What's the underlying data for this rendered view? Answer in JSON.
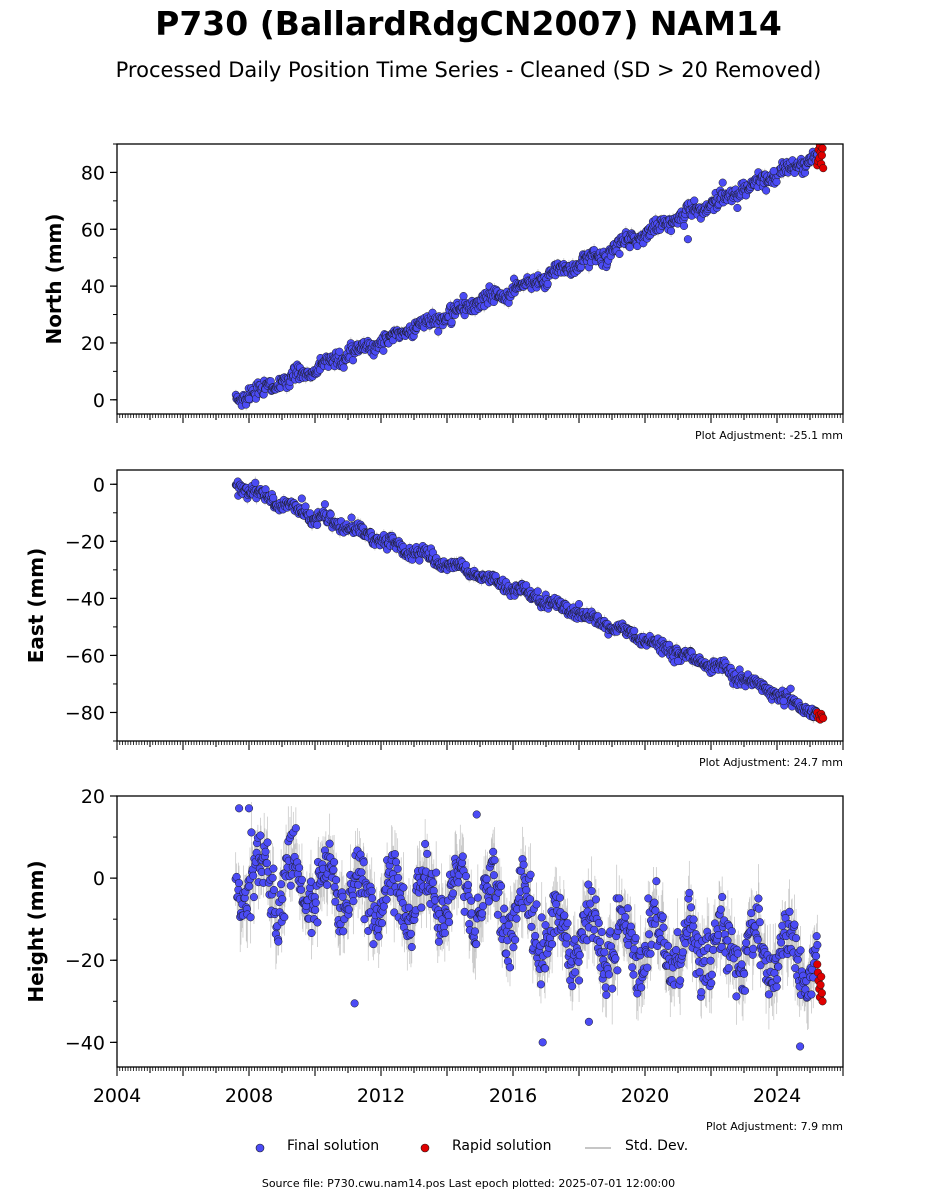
{
  "title": "P730 (BallardRdgCN2007) NAM14",
  "subtitle": "Processed Daily Position Time Series - Cleaned (SD > 20 Removed)",
  "footer": "Source file: P730.cwu.nam14.pos  Last epoch plotted: 2025-07-01 12:00:00",
  "colors": {
    "final": "#4b4bf5",
    "rapid": "#e00000",
    "stddev": "#b4b4b4",
    "edge": "#1a1a1a"
  },
  "legend": [
    {
      "key": "final",
      "label": "Final solution"
    },
    {
      "key": "rapid",
      "label": "Rapid solution"
    },
    {
      "key": "stddev",
      "label": "Std. Dev."
    }
  ],
  "chart_data": [
    {
      "type": "scatter",
      "name": "north",
      "ylabel": "North (mm)",
      "xlim": [
        2004.0,
        2026.0
      ],
      "ylim": [
        -5,
        90
      ],
      "yticks": [
        0,
        20,
        40,
        60,
        80
      ],
      "adjustment_label": "Plot Adjustment: -25.1 mm",
      "show_x_tick_labels": false,
      "series": [
        {
          "key": "final",
          "label": "Final solution",
          "trend": [
            [
              2007.6,
              0.5
            ],
            [
              2009.0,
              6
            ],
            [
              2011.0,
              16
            ],
            [
              2013.0,
              25
            ],
            [
              2015.0,
              34.5
            ],
            [
              2017.0,
              43
            ],
            [
              2019.0,
              53
            ],
            [
              2021.0,
              64
            ],
            [
              2023.0,
              74
            ],
            [
              2025.3,
              86
            ]
          ],
          "seasonal_amplitude": 1.2,
          "noise": 1.3,
          "sd": 1.5
        },
        {
          "key": "rapid",
          "label": "Rapid solution",
          "x": [
            2025.22,
            2025.24,
            2025.26,
            2025.28,
            2025.3,
            2025.32,
            2025.34,
            2025.36,
            2025.38,
            2025.4
          ],
          "y": [
            82.5,
            84,
            88,
            85,
            89.5,
            87,
            83,
            86,
            88.5,
            81.5
          ]
        }
      ],
      "outliers": [
        [
          2008.0,
          0.3
        ],
        [
          2014.5,
          36.5
        ],
        [
          2021.3,
          56.5
        ],
        [
          2023.9,
          80.5
        ],
        [
          2022.8,
          67.5
        ]
      ]
    },
    {
      "type": "scatter",
      "name": "east",
      "ylabel": "East (mm)",
      "xlim": [
        2004.0,
        2026.0
      ],
      "ylim": [
        -90,
        5
      ],
      "yticks": [
        0,
        -20,
        -40,
        -60,
        -80
      ],
      "adjustment_label": "Plot Adjustment: 24.7 mm",
      "show_x_tick_labels": false,
      "series": [
        {
          "key": "final",
          "label": "Final solution",
          "trend": [
            [
              2007.6,
              0
            ],
            [
              2009.0,
              -7
            ],
            [
              2011.0,
              -15
            ],
            [
              2013.0,
              -24
            ],
            [
              2015.0,
              -32
            ],
            [
              2017.0,
              -41
            ],
            [
              2019.0,
              -50
            ],
            [
              2021.0,
              -59
            ],
            [
              2023.0,
              -68
            ],
            [
              2025.3,
              -81
            ]
          ],
          "seasonal_amplitude": 1.0,
          "noise": 1.1,
          "sd": 1.5
        },
        {
          "key": "rapid",
          "label": "Rapid solution",
          "x": [
            2025.22,
            2025.25,
            2025.28,
            2025.31,
            2025.34,
            2025.37,
            2025.4
          ],
          "y": [
            -80,
            -82,
            -81,
            -82.5,
            -80.5,
            -81.5,
            -82
          ]
        }
      ],
      "outliers": [
        [
          2009.6,
          -5
        ],
        [
          2010.3,
          -7
        ],
        [
          2018.0,
          -42
        ],
        [
          2021.0,
          -62
        ],
        [
          2024.2,
          -76
        ]
      ]
    },
    {
      "type": "scatter",
      "name": "height",
      "ylabel": "Height (mm)",
      "xlim": [
        2004.0,
        2026.0
      ],
      "ylim": [
        -46,
        20
      ],
      "yticks": [
        20,
        0,
        -20,
        -40
      ],
      "xticks": [
        2004,
        2008,
        2012,
        2016,
        2020,
        2024
      ],
      "adjustment_label": "Plot Adjustment: 7.9 mm",
      "show_x_tick_labels": true,
      "series": [
        {
          "key": "final",
          "label": "Final solution",
          "trend": [
            [
              2007.6,
              0
            ],
            [
              2011.0,
              -3
            ],
            [
              2013.0,
              -5
            ],
            [
              2015.0,
              -4
            ],
            [
              2016.0,
              -8
            ],
            [
              2017.0,
              -14
            ],
            [
              2019.0,
              -15
            ],
            [
              2021.0,
              -17
            ],
            [
              2023.0,
              -17
            ],
            [
              2025.3,
              -21
            ]
          ],
          "seasonal_amplitude": 7.5,
          "noise": 3.5,
          "sd": 6
        },
        {
          "key": "rapid",
          "label": "Rapid solution",
          "x": [
            2025.22,
            2025.24,
            2025.26,
            2025.28,
            2025.3,
            2025.32,
            2025.34,
            2025.36,
            2025.38
          ],
          "y": [
            -21,
            -23,
            -25,
            -27,
            -29,
            -26,
            -24,
            -28,
            -30
          ]
        }
      ],
      "outliers": [
        [
          2007.7,
          17
        ],
        [
          2008.0,
          17
        ],
        [
          2014.9,
          15.5
        ],
        [
          2011.2,
          -30.5
        ],
        [
          2016.9,
          -40
        ],
        [
          2018.3,
          -35
        ],
        [
          2024.7,
          -41
        ]
      ]
    }
  ]
}
